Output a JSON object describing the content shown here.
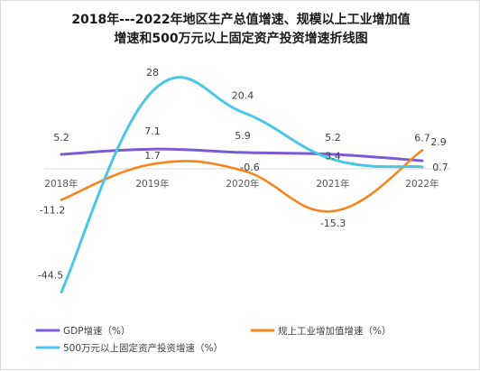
{
  "chart_data": {
    "type": "line",
    "title": "2018年---2022年地区生产总值增速、规模以上工业增加值",
    "subtitle": "增速和500万元以上固定资产投资增速折线图",
    "categories": [
      "2018年",
      "2019年",
      "2020年",
      "2021年",
      "2022年"
    ],
    "series": [
      {
        "name": "GDP增速（%）",
        "color": "#7b5cd6",
        "values": [
          5.2,
          7.1,
          5.9,
          5.2,
          2.9
        ]
      },
      {
        "name": "规上工业增加值增速（%）",
        "color": "#f5861f",
        "values": [
          -11.2,
          1.7,
          -0.6,
          -15.3,
          6.7
        ]
      },
      {
        "name": "500万元以上固定资产投资增速（%）",
        "color": "#4cc6e8",
        "values": [
          -44.5,
          28,
          20.4,
          3.4,
          0.7
        ]
      }
    ],
    "xlabel": "",
    "ylabel": "",
    "grid": false,
    "legend_position": "bottom"
  }
}
